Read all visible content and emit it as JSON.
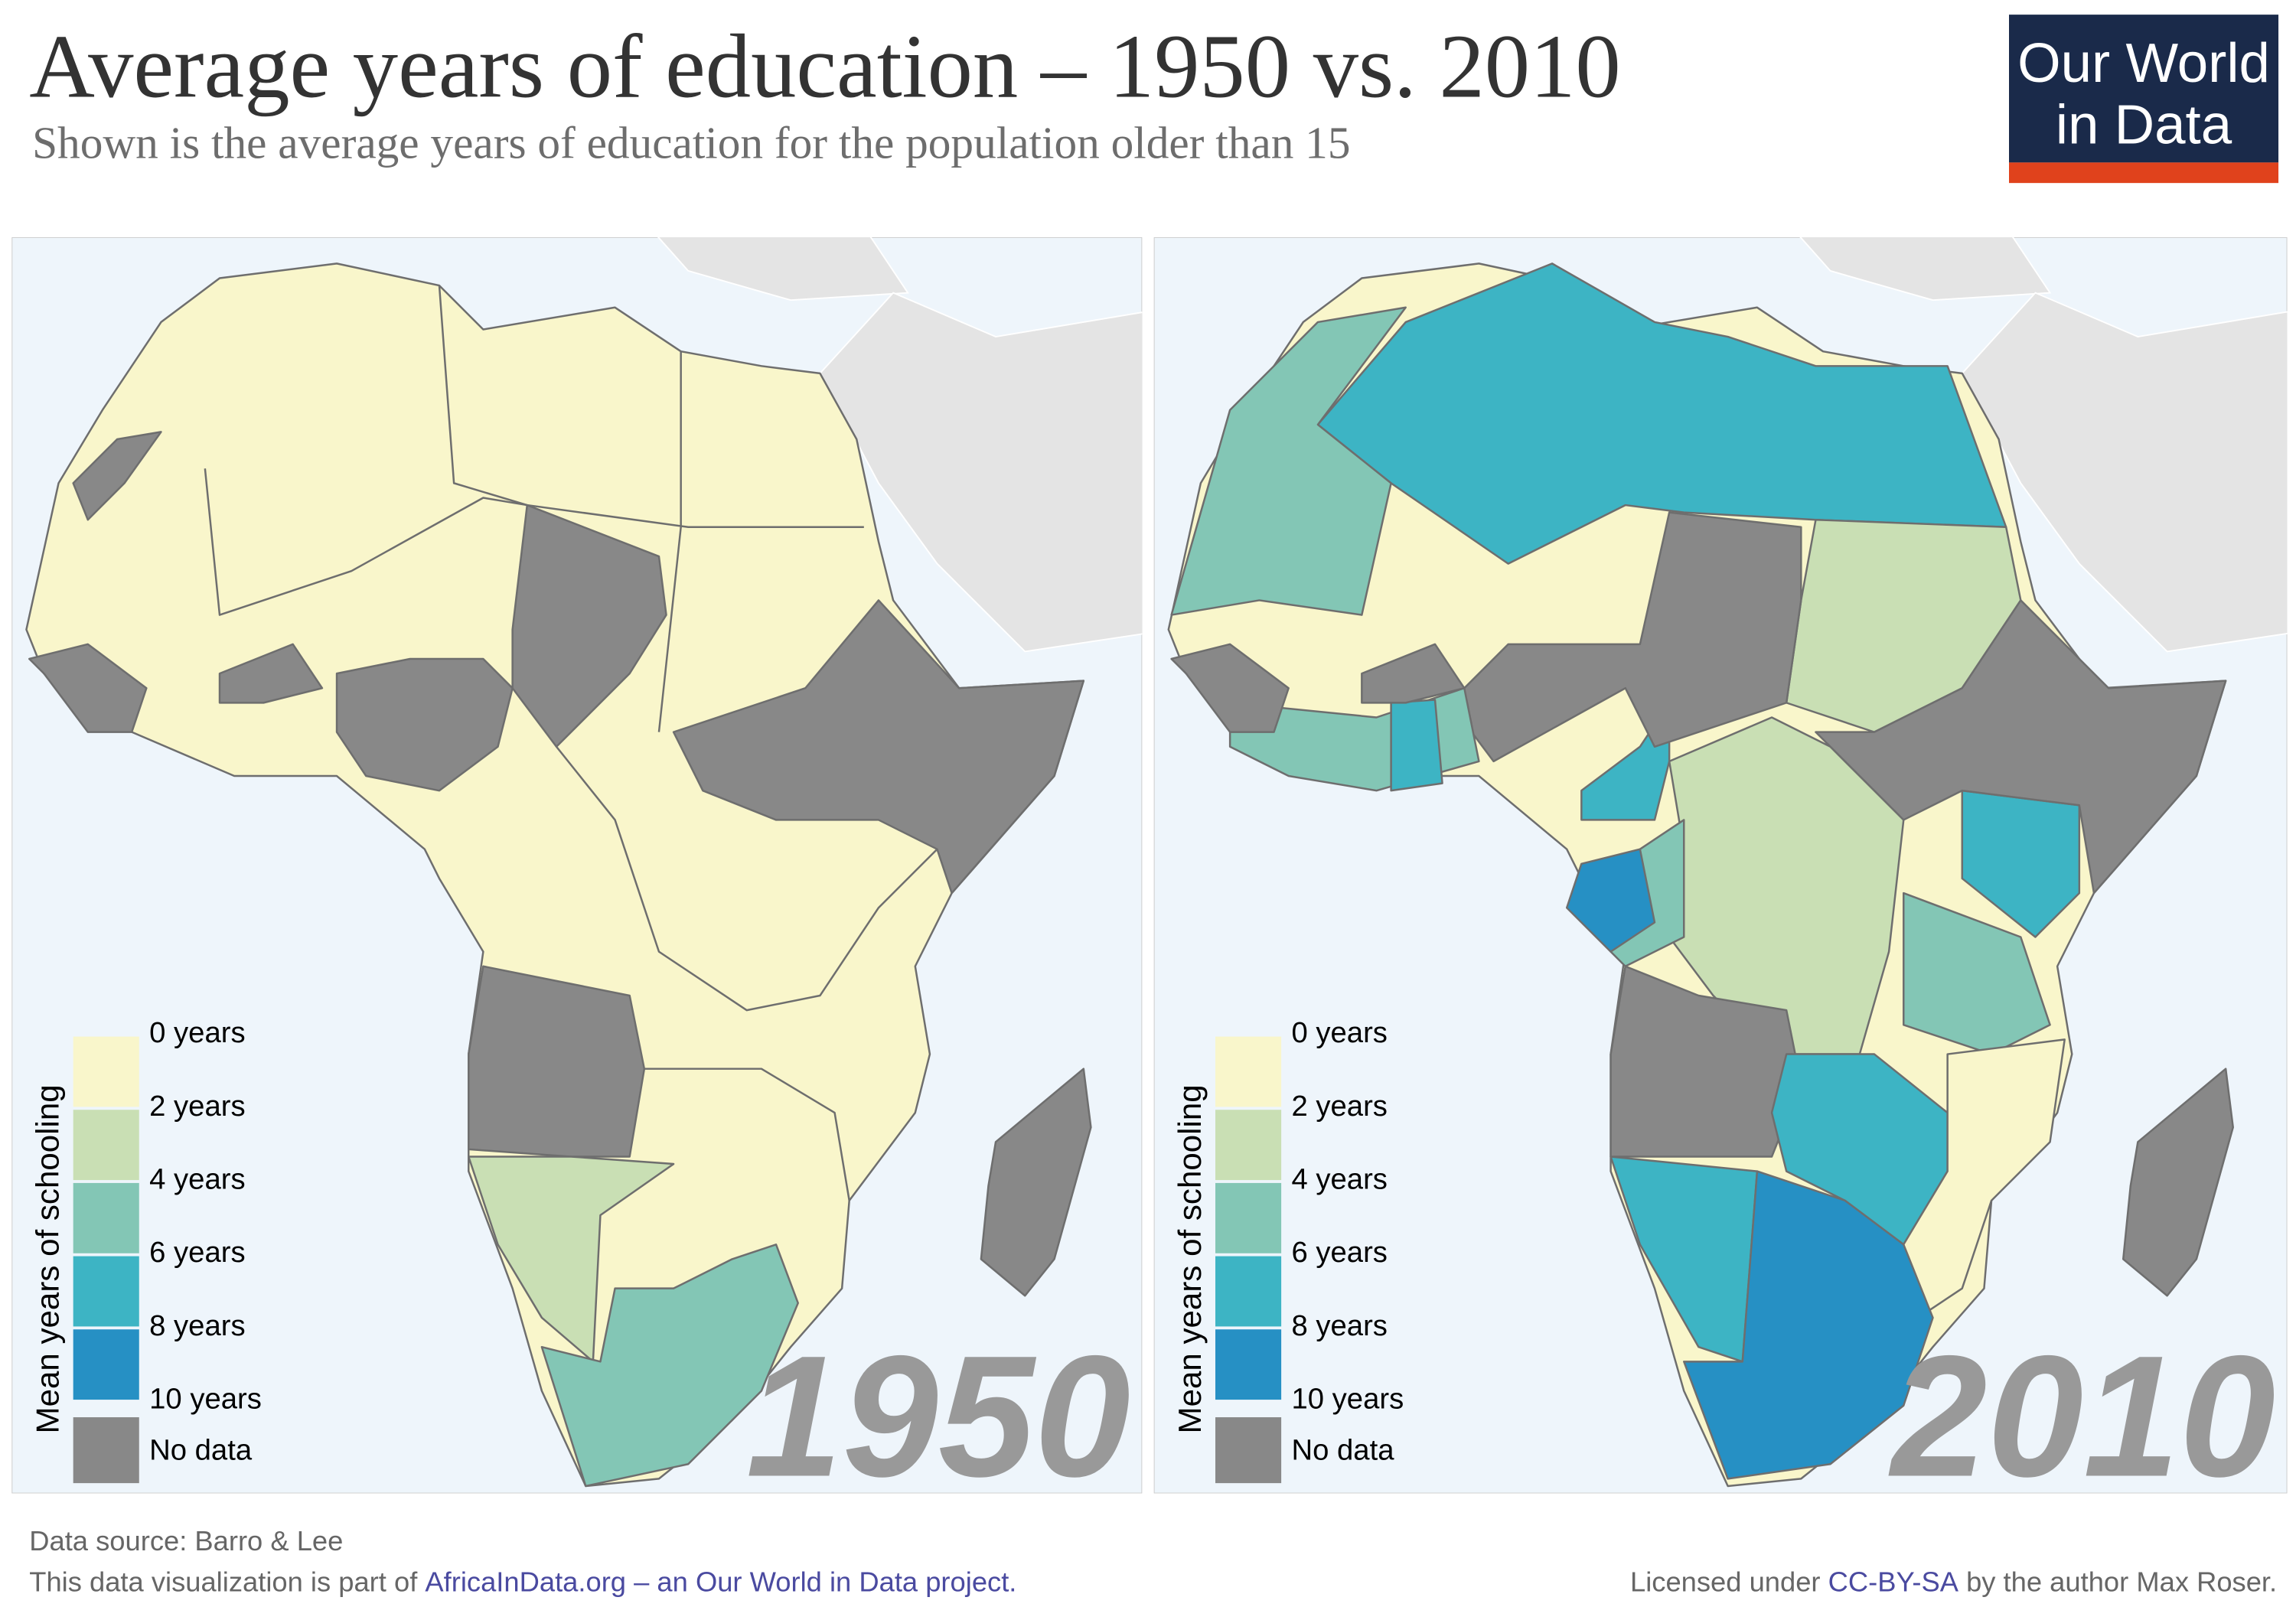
{
  "header": {
    "title": "Average years of education – 1950 vs. 2010",
    "subtitle": "Shown is the average years of education for the population older than 15",
    "logo": [
      "Our World",
      "in Data"
    ]
  },
  "maps": [
    {
      "year": "1950"
    },
    {
      "year": "2010"
    }
  ],
  "legend": {
    "title": "Mean years of schooling",
    "labels": [
      "0 years",
      "2 years",
      "4 years",
      "6 years",
      "8 years",
      "10 years"
    ],
    "colors": [
      "#f9f6cb",
      "#c9dfb4",
      "#83c6b5",
      "#3db4c4",
      "#2690c4"
    ],
    "no_data": {
      "label": "No data",
      "color": "#888888"
    }
  },
  "footer": {
    "source": "Data source: Barro & Lee",
    "note": "This data visualization is part of",
    "link": "AfricaInData.org – an Our World in Data project.",
    "license_prefix": "Licensed under",
    "license": "CC-BY-SA",
    "license_suffix": "by the author Max Roser."
  }
}
